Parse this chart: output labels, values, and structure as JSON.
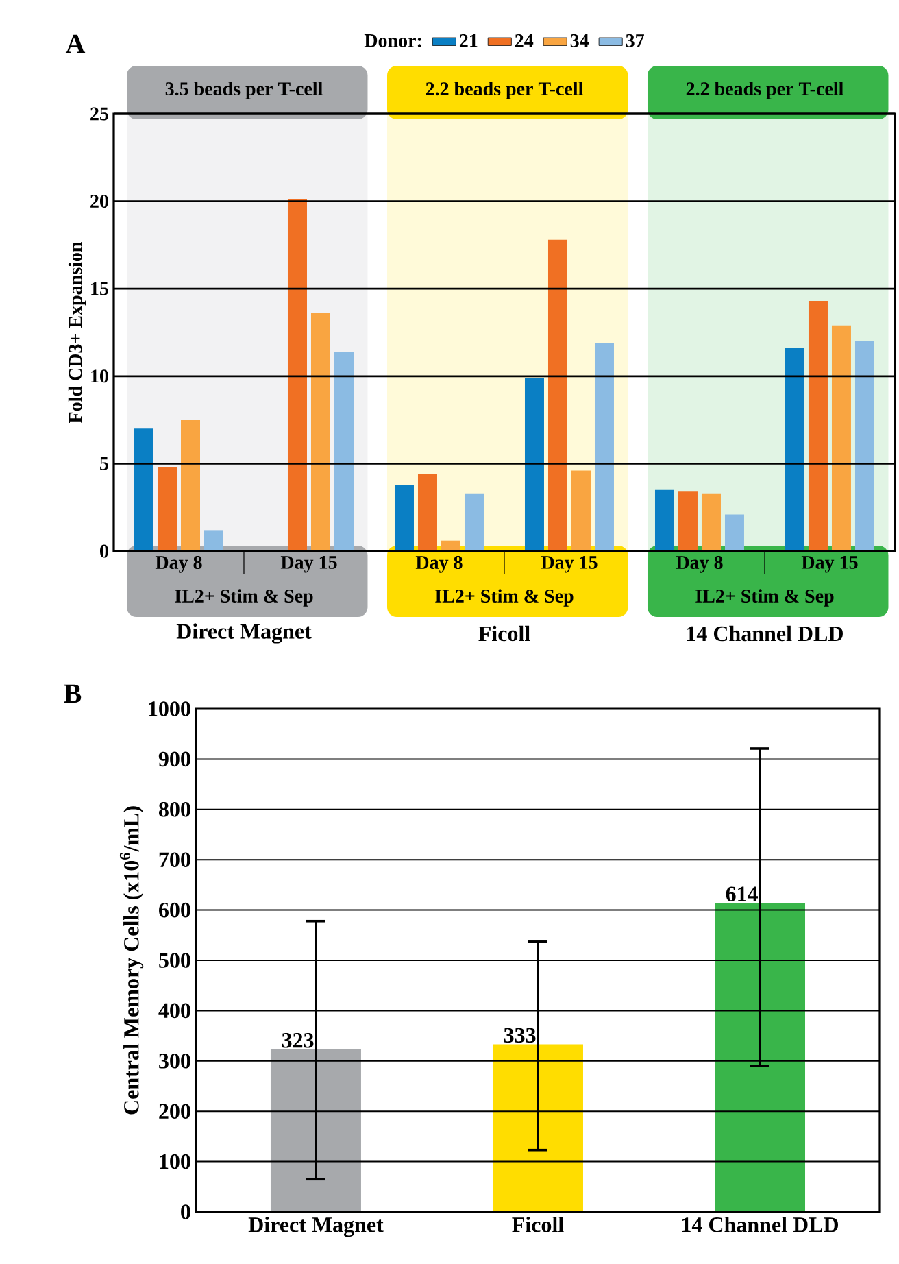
{
  "chart_data": [
    {
      "type": "bar",
      "legend_title": "Donor:",
      "ylabel": "Fold CD3+ Expansion",
      "categories": [
        "Day 8",
        "Day 15",
        "Day 8",
        "Day 15",
        "Day 8",
        "Day 15"
      ],
      "series": [
        {
          "name": "21",
          "color": "#0a7fc4",
          "values": [
            7.0,
            null,
            3.8,
            9.9,
            3.5,
            11.6
          ]
        },
        {
          "name": "24",
          "color": "#f07023",
          "values": [
            4.8,
            20.1,
            4.4,
            17.8,
            3.4,
            14.3
          ]
        },
        {
          "name": "34",
          "color": "#f9a541",
          "values": [
            7.5,
            13.6,
            0.6,
            4.6,
            3.3,
            12.9
          ]
        },
        {
          "name": "37",
          "color": "#8bbbe3",
          "values": [
            1.2,
            11.4,
            3.3,
            11.9,
            2.1,
            12.0
          ]
        }
      ],
      "ylim": [
        0,
        25
      ],
      "yticks": [
        0,
        5,
        10,
        15,
        20,
        25
      ],
      "grid": "y",
      "legend": "top",
      "annotations": [
        "A",
        "3.5 beads per T-cell",
        "2.2 beads per T-cell",
        "2.2 beads per T-cell",
        "IL2+ Stim & Sep",
        "IL2+ Stim & Sep",
        "IL2+ Stim & Sep",
        "Direct Magnet",
        "Ficoll",
        "14 Channel DLD"
      ]
    },
    {
      "type": "bar",
      "ylabel": "Central Memory Cells (x10$^{6}$/mL)",
      "categories": [
        "Direct Magnet",
        "Ficoll",
        "14 Channel DLD"
      ],
      "values": [
        323,
        333,
        614
      ],
      "colors": [
        "#a7a9ac",
        "#ffdd00",
        "#39b54a"
      ],
      "errors": [
        [
          65,
          578
        ],
        [
          123,
          537
        ],
        [
          290,
          921
        ]
      ],
      "data_labels": true,
      "ylim": [
        0,
        1000
      ],
      "yticks": [
        0,
        100,
        200,
        300,
        400,
        500,
        600,
        700,
        800,
        900,
        1000
      ],
      "grid": "y",
      "annotations": [
        "B"
      ]
    }
  ]
}
